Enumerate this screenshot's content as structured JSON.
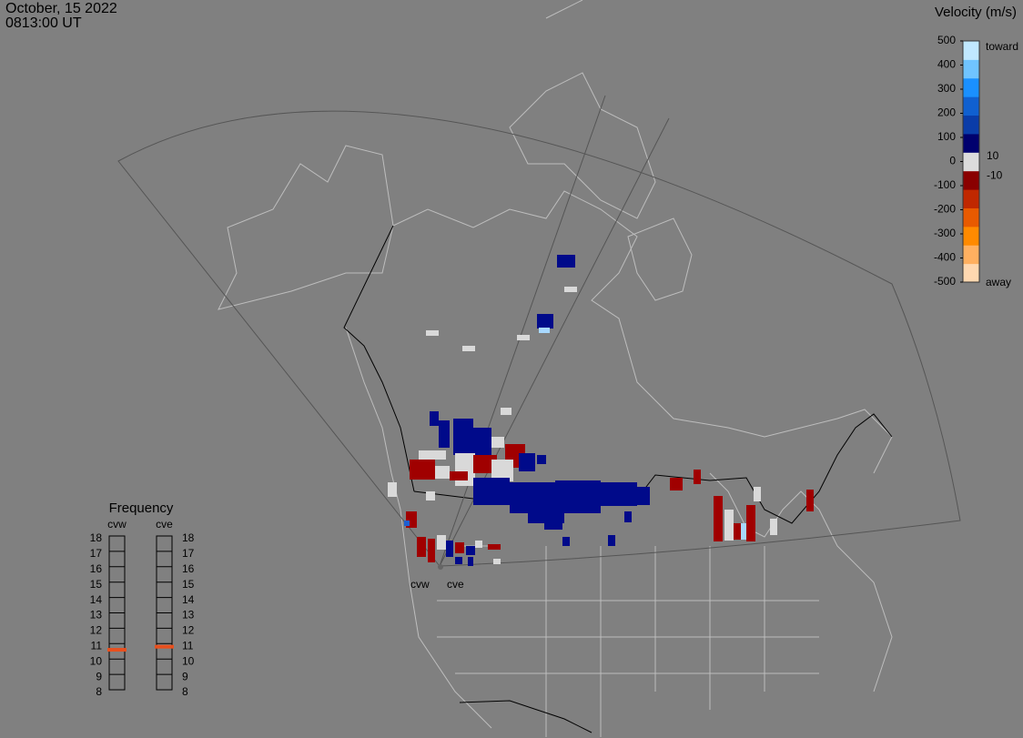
{
  "header": {
    "date": "October, 15 2022",
    "time": "0813:00 UT"
  },
  "velocity_scale": {
    "title": "Velocity (m/s)",
    "ylim": [
      -500,
      500
    ],
    "ticks": [
      500,
      400,
      300,
      200,
      100,
      0,
      -100,
      -200,
      -300,
      -400,
      -500
    ],
    "threshold_ticks": [
      10,
      -10
    ],
    "top_label": "toward",
    "bottom_label": "away"
  },
  "frequency": {
    "title": "Frequency",
    "ylim": [
      8,
      18
    ],
    "ticks": [
      18,
      17,
      16,
      15,
      14,
      13,
      12,
      11,
      10,
      9,
      8
    ],
    "radars": [
      {
        "name": "cvw",
        "value": 10.6
      },
      {
        "name": "cve",
        "value": 10.8
      }
    ]
  },
  "map_labels": [
    "cvw",
    "cve"
  ]
}
